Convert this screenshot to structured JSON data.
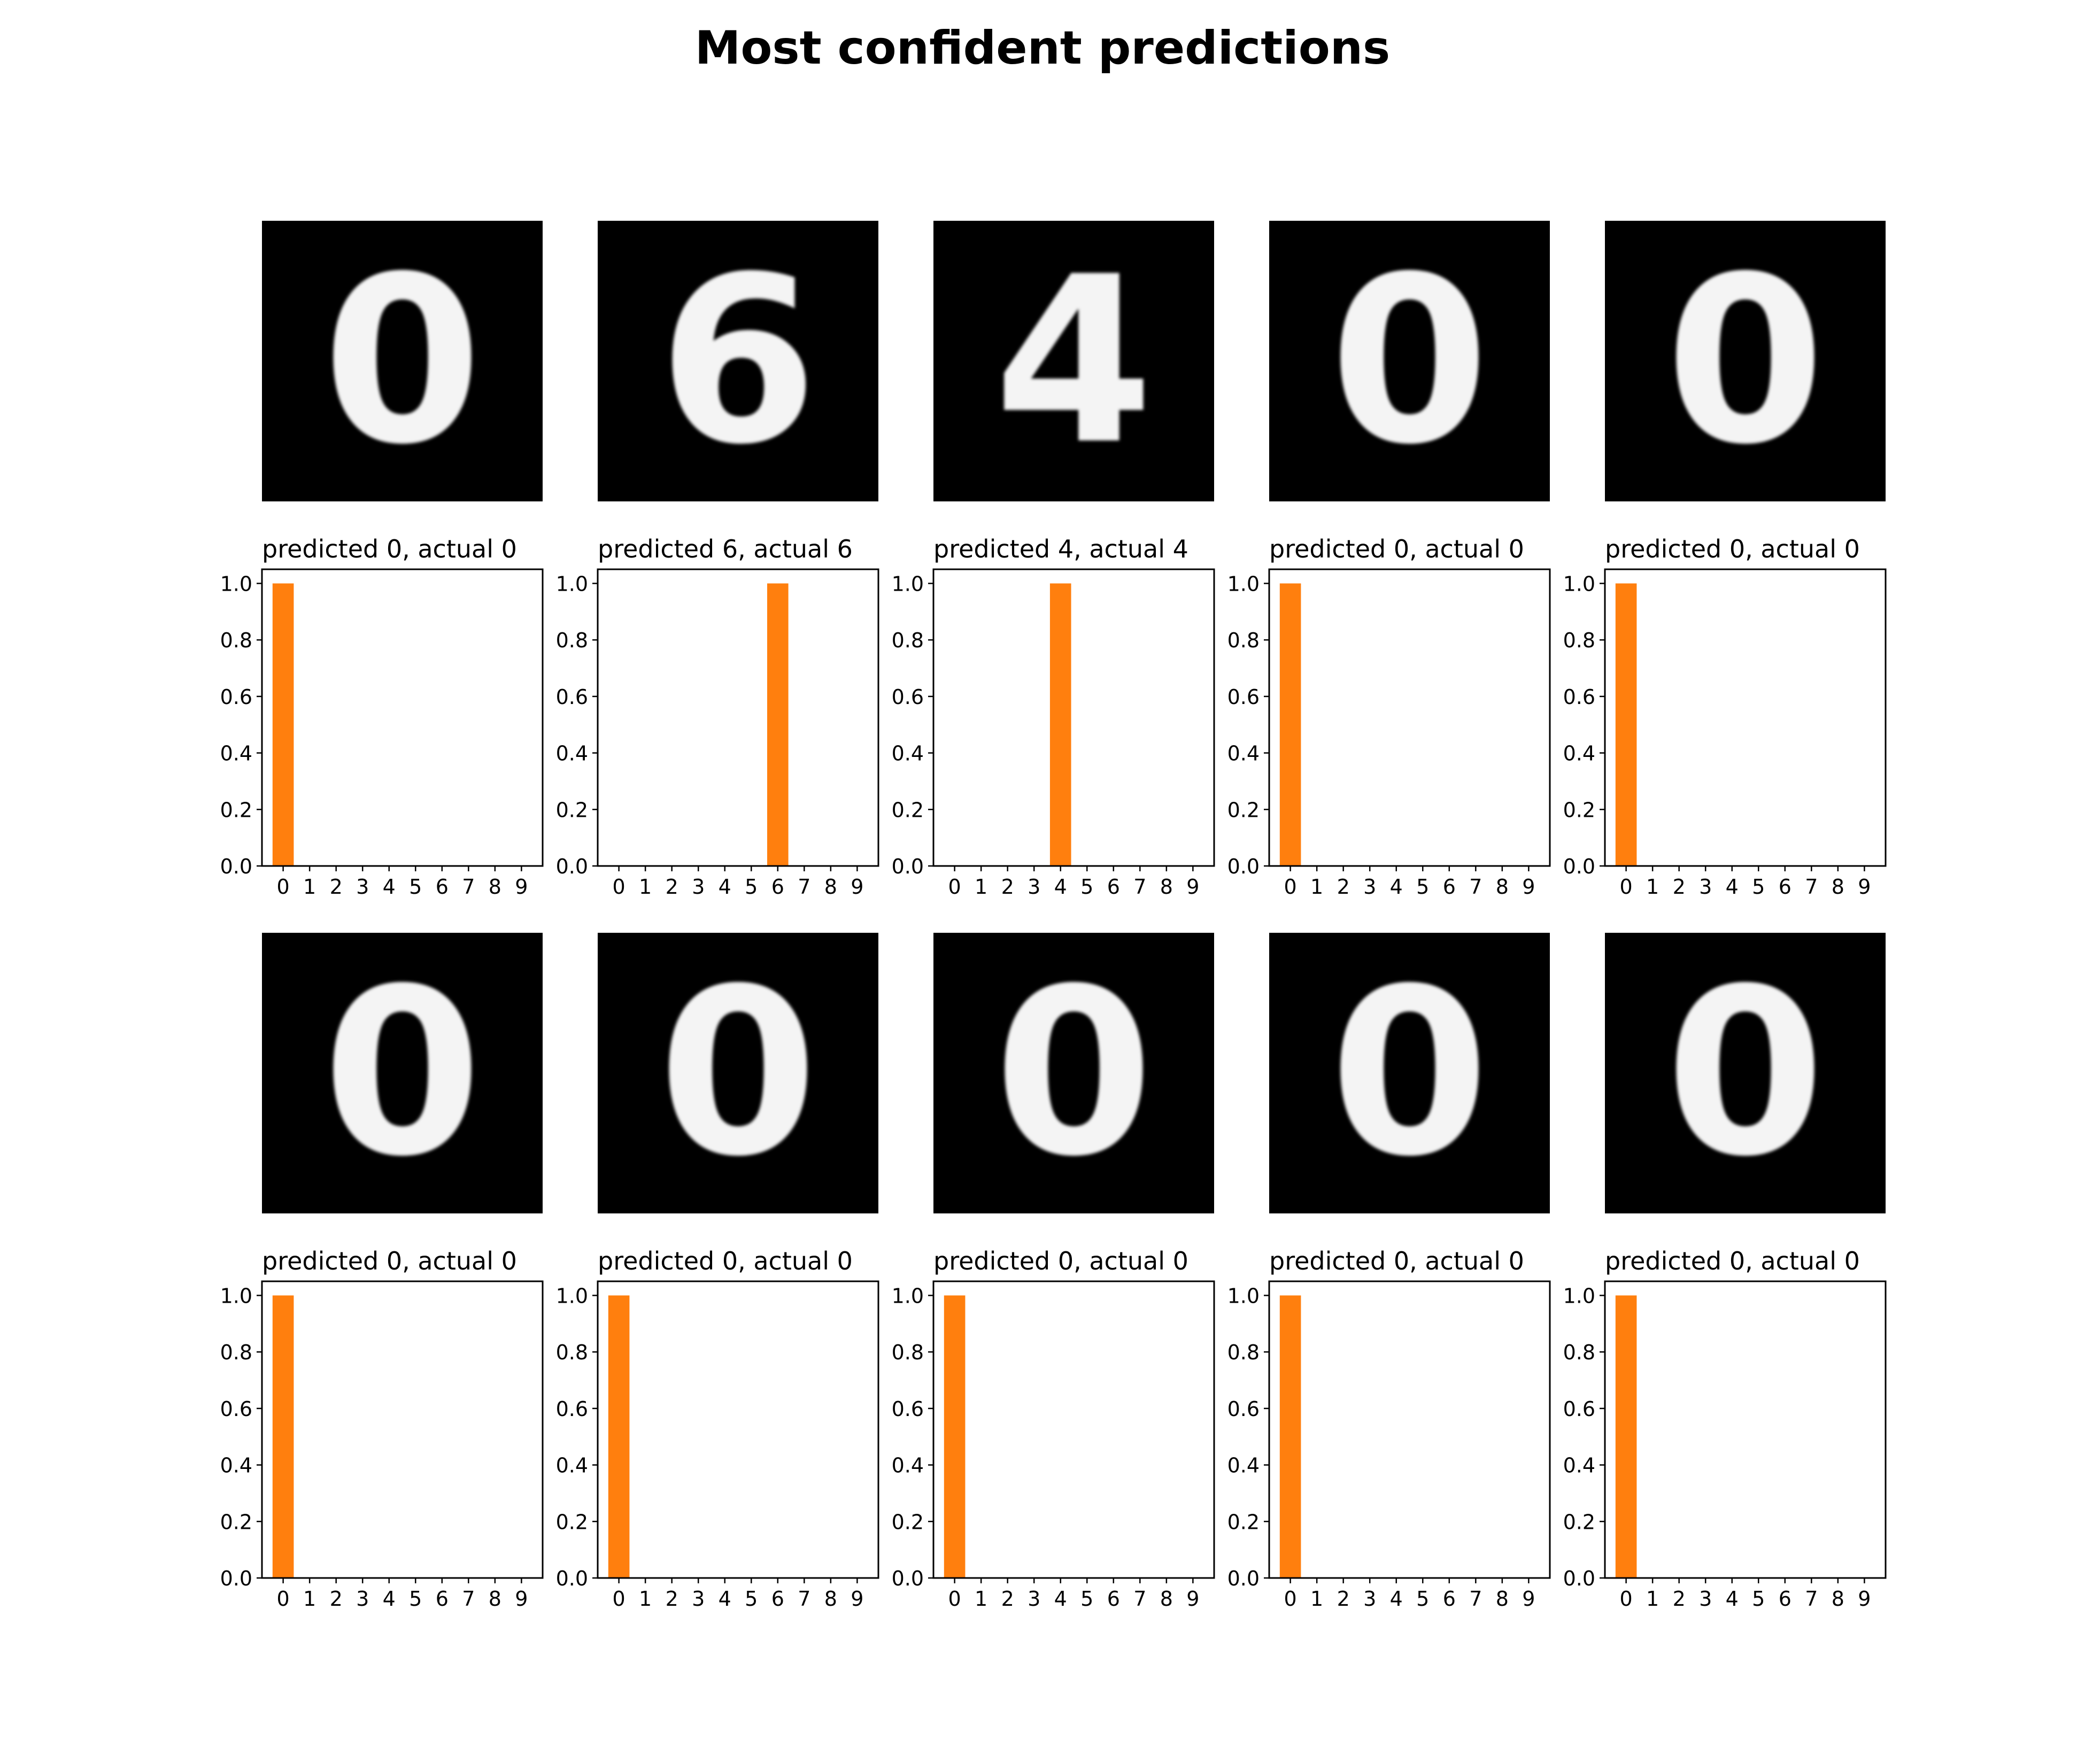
{
  "chart_data": {
    "type": "bar",
    "title": "Most confident predictions",
    "categories": [
      "0",
      "1",
      "2",
      "3",
      "4",
      "5",
      "6",
      "7",
      "8",
      "9"
    ],
    "yticks": [
      "0.0",
      "0.2",
      "0.4",
      "0.6",
      "0.8",
      "1.0"
    ],
    "ylim": [
      0,
      1.05
    ],
    "bar_color": "#ff7f0e",
    "panels": [
      {
        "digit": "0",
        "title": "predicted 0, actual 0",
        "values": [
          1,
          0,
          0,
          0,
          0,
          0,
          0,
          0,
          0,
          0
        ]
      },
      {
        "digit": "6",
        "title": "predicted 6, actual 6",
        "values": [
          0,
          0,
          0,
          0,
          0,
          0,
          1,
          0,
          0,
          0
        ]
      },
      {
        "digit": "4",
        "title": "predicted 4, actual 4",
        "values": [
          0,
          0,
          0,
          0,
          1,
          0,
          0,
          0,
          0,
          0
        ]
      },
      {
        "digit": "0",
        "title": "predicted 0, actual 0",
        "values": [
          1,
          0,
          0,
          0,
          0,
          0,
          0,
          0,
          0,
          0
        ]
      },
      {
        "digit": "0",
        "title": "predicted 0, actual 0",
        "values": [
          1,
          0,
          0,
          0,
          0,
          0,
          0,
          0,
          0,
          0
        ]
      },
      {
        "digit": "0",
        "title": "predicted 0, actual 0",
        "values": [
          1,
          0,
          0,
          0,
          0,
          0,
          0,
          0,
          0,
          0
        ]
      },
      {
        "digit": "0",
        "title": "predicted 0, actual 0",
        "values": [
          1,
          0,
          0,
          0,
          0,
          0,
          0,
          0,
          0,
          0
        ]
      },
      {
        "digit": "0",
        "title": "predicted 0, actual 0",
        "values": [
          1,
          0,
          0,
          0,
          0,
          0,
          0,
          0,
          0,
          0
        ]
      },
      {
        "digit": "0",
        "title": "predicted 0, actual 0",
        "values": [
          1,
          0,
          0,
          0,
          0,
          0,
          0,
          0,
          0,
          0
        ]
      },
      {
        "digit": "0",
        "title": "predicted 0, actual 0",
        "values": [
          1,
          0,
          0,
          0,
          0,
          0,
          0,
          0,
          0,
          0
        ]
      }
    ]
  }
}
